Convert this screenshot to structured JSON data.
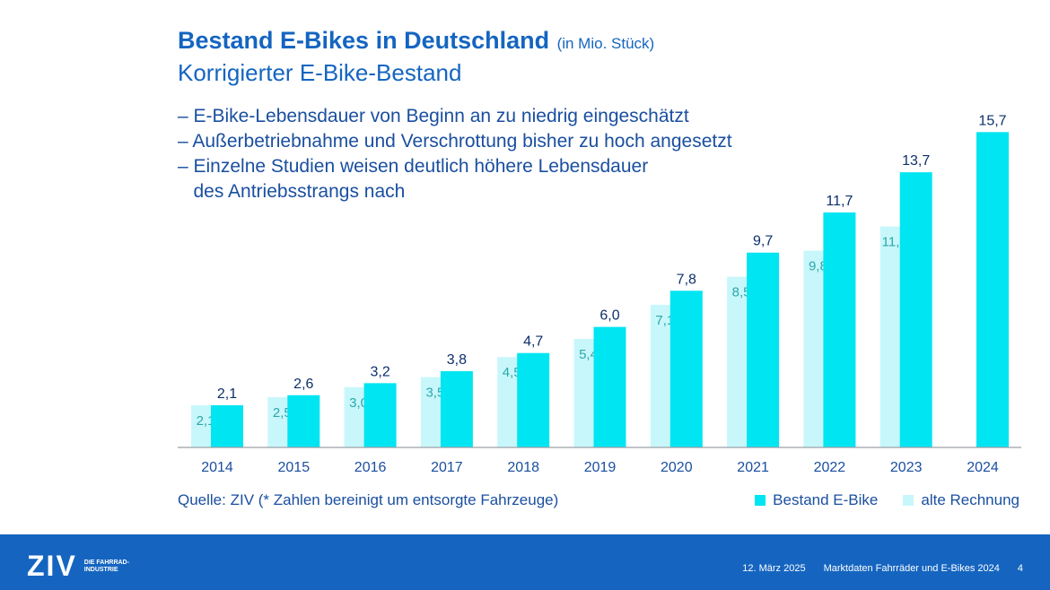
{
  "header": {
    "title": "Bestand E-Bikes in Deutschland",
    "title_unit": "(in Mio. Stück)",
    "subtitle": "Korrigierter E-Bike-Bestand",
    "bullets": [
      "– E-Bike-Lebensdauer von Beginn an zu niedrig eingeschätzt",
      "– Außerbetriebnahme und Verschrottung bisher zu hoch angesetzt",
      "– Einzelne Studien weisen deutlich höhere Lebensdauer",
      "   des Antriebsstrangs nach"
    ]
  },
  "chart_data": {
    "type": "bar",
    "categories": [
      "2014",
      "2015",
      "2016",
      "2017",
      "2018",
      "2019",
      "2020",
      "2021",
      "2022",
      "2023",
      "2024"
    ],
    "series": [
      {
        "name": "alte Rechnung",
        "values": [
          2.1,
          2.5,
          3.0,
          3.5,
          4.5,
          5.4,
          7.1,
          8.5,
          9.8,
          11.0,
          null
        ],
        "labels": [
          "2,1",
          "2,5",
          "3,0",
          "3,5",
          "4,5",
          "5,4",
          "7,1",
          "8,5",
          "9,8",
          "11,0",
          ""
        ],
        "color": "#c8f7fb"
      },
      {
        "name": "Bestand E-Bike",
        "values": [
          2.1,
          2.6,
          3.2,
          3.8,
          4.7,
          6.0,
          7.8,
          9.7,
          11.7,
          13.7,
          15.7
        ],
        "labels": [
          "2,1",
          "2,6",
          "3,2",
          "3,8",
          "4,7",
          "6,0",
          "7,8",
          "9,7",
          "11,7",
          "13,7",
          "15,7"
        ],
        "color": "#00e5f2"
      }
    ],
    "ylim": [
      0,
      16
    ],
    "grid": false,
    "legend": "bottom-right"
  },
  "colors": {
    "accent": "#1565c0",
    "bar_new": "#00e5f2",
    "bar_old": "#c8f7fb",
    "old_label": "#2aa8a8",
    "new_label": "#0d2f6b"
  },
  "source": "Quelle: ZIV (* Zahlen bereinigt um entsorgte Fahrzeuge)",
  "legend": {
    "new": "Bestand E-Bike",
    "old": "alte Rechnung"
  },
  "footer": {
    "logo": "ZIV",
    "logo_sub": "DIE FAHRRAD- INDUSTRIE",
    "date": "12. März 2025",
    "doc_title": "Marktdaten Fahrräder und E-Bikes 2024",
    "page": "4"
  }
}
